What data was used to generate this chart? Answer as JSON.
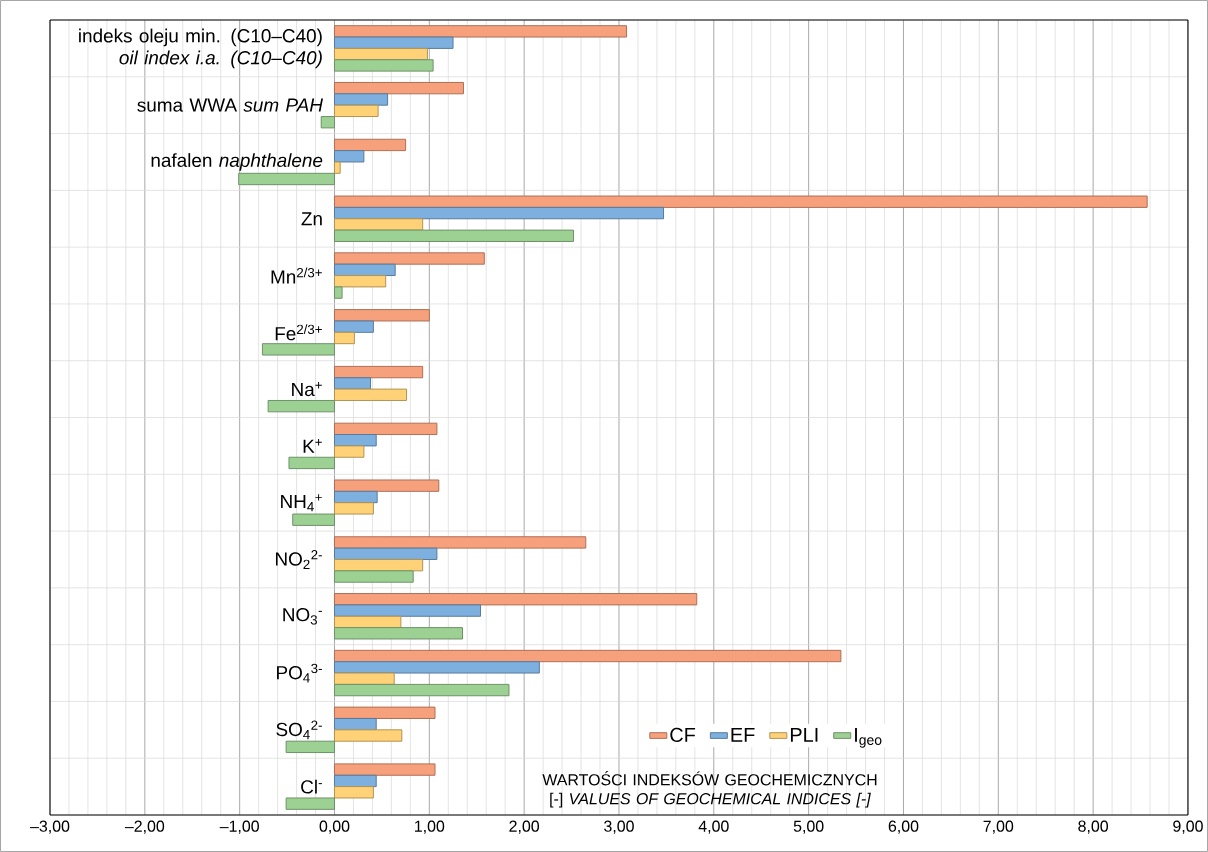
{
  "chart_data": {
    "type": "bar",
    "orientation": "horizontal",
    "categories": [
      "indeks oleju min. (C10–C40) *oil index i.a. (C10–C40)*",
      "suma WWA *sum PAH*",
      "nafalen *naphthalene*",
      "Zn",
      "Mn$^{2/3+}$",
      "Fe$^{2/3+}$",
      "Na$^{+}$",
      "K$^{+}$",
      "NH$_{4}$$^{+}$",
      "NO$_{2}$$^{2-}$",
      "NO$_{3}$$^{-}$",
      "PO$_{4}$$^{3-}$",
      "SO$_{4}$$^{2-}$",
      "Cl$^{-}$"
    ],
    "series": [
      {
        "name": "CF",
        "color": "#f7a07c",
        "values": [
          3.08,
          1.36,
          0.75,
          8.57,
          1.58,
          1.0,
          0.93,
          1.08,
          1.1,
          2.65,
          3.82,
          5.34,
          1.06,
          1.06
        ]
      },
      {
        "name": "EF",
        "color": "#7eb0df",
        "values": [
          1.25,
          0.56,
          0.31,
          3.47,
          0.64,
          0.41,
          0.38,
          0.44,
          0.45,
          1.08,
          1.54,
          2.16,
          0.44,
          0.44
        ]
      },
      {
        "name": "PLI",
        "color": "#ffd278",
        "values": [
          0.98,
          0.46,
          0.06,
          0.93,
          0.54,
          0.21,
          0.76,
          0.31,
          0.41,
          0.93,
          0.7,
          0.63,
          0.71,
          0.41
        ]
      },
      {
        "name": "I$_{geo}$",
        "color": "#9dd193",
        "values": [
          1.04,
          -0.14,
          -1.01,
          2.52,
          0.08,
          -0.76,
          -0.7,
          -0.48,
          -0.44,
          0.83,
          1.35,
          1.84,
          -0.51,
          -0.51
        ]
      }
    ],
    "xlabel": "WARTOŚCI INDEKSÓW GEOCHEMICZNYCH [-] *VALUES OF GEOCHEMICAL INDICES [-]*",
    "xlim": [
      -3,
      9
    ],
    "xticks": [
      {
        "value": -3,
        "label": "–3,00"
      },
      {
        "value": -2,
        "label": "–2,00"
      },
      {
        "value": -1,
        "label": "–1,00"
      },
      {
        "value": 0,
        "label": "0,00"
      },
      {
        "value": 1,
        "label": "1,00"
      },
      {
        "value": 2,
        "label": "2,00"
      },
      {
        "value": 3,
        "label": "3,00"
      },
      {
        "value": 4,
        "label": "4,00"
      },
      {
        "value": 5,
        "label": "5,00"
      },
      {
        "value": 6,
        "label": "6,00"
      },
      {
        "value": 7,
        "label": "7,00"
      },
      {
        "value": 8,
        "label": "8,00"
      },
      {
        "value": 9,
        "label": "9,00"
      }
    ],
    "grid": true,
    "legend": "bottom"
  }
}
